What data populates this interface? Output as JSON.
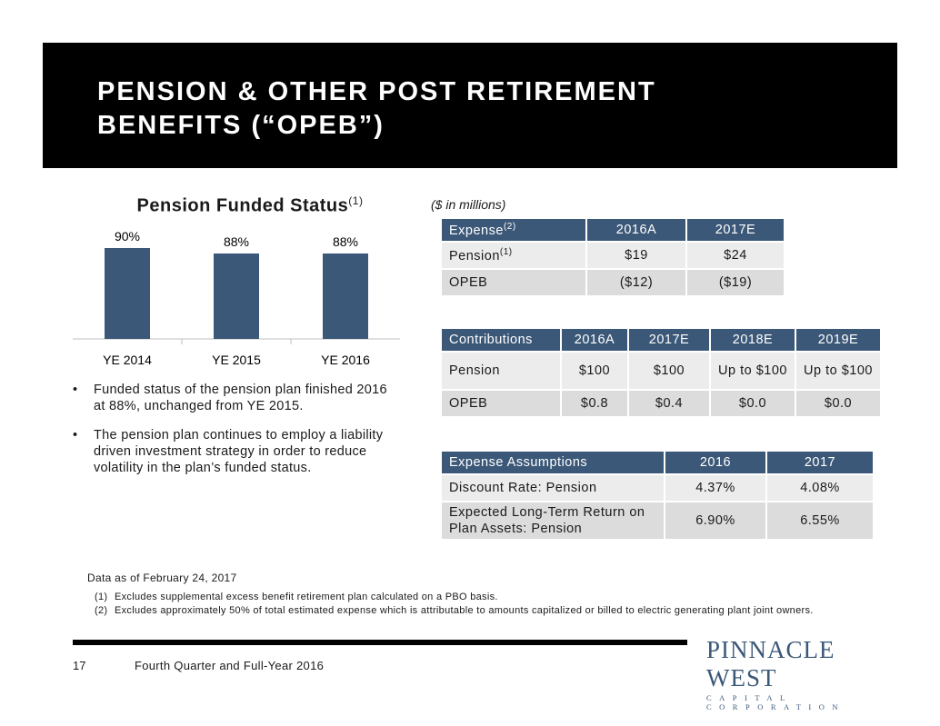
{
  "title": "PENSION & OTHER POST RETIREMENT\nBENEFITS (“OPEB”)",
  "chart_title": "Pension Funded Status",
  "chart_title_sup": "(1)",
  "chart_data": {
    "type": "bar",
    "title": "Pension Funded Status(1)",
    "categories": [
      "YE 2014",
      "YE 2015",
      "YE 2016"
    ],
    "values": [
      90,
      88,
      88
    ],
    "data_labels": [
      "90%",
      "88%",
      "88%"
    ],
    "color": "#3b5878",
    "xlabel": "",
    "ylabel": ""
  },
  "bullets": [
    "Funded status of the pension plan finished 2016 at 88%, unchanged from YE 2015.",
    "The pension plan continues to employ a liability driven investment strategy in order to reduce volatility in the plan’s funded status."
  ],
  "bullet_char": "•",
  "units_note": "($ in millions)",
  "expense_table": {
    "header": {
      "label": "Expense",
      "sup": "(2)",
      "cols": [
        "2016A",
        "2017E"
      ]
    },
    "rows": [
      {
        "label": "Pension",
        "sup": "(1)",
        "cells": [
          "$19",
          "$24"
        ]
      },
      {
        "label": "OPEB",
        "sup": "",
        "cells": [
          "($12)",
          "($19)"
        ]
      }
    ]
  },
  "contributions_table": {
    "header": [
      "Contributions",
      "2016A",
      "2017E",
      "2018E",
      "2019E"
    ],
    "rows": [
      [
        "Pension",
        "$100",
        "$100",
        "Up to $100",
        "Up to $100"
      ],
      [
        "OPEB",
        "$0.8",
        "$0.4",
        "$0.0",
        "$0.0"
      ]
    ]
  },
  "assumptions_table": {
    "header": [
      "Expense Assumptions",
      "2016",
      "2017"
    ],
    "rows": [
      [
        "Discount Rate: Pension",
        "4.37%",
        "4.08%"
      ],
      [
        "Expected Long-Term Return on Plan Assets: Pension",
        "6.90%",
        "6.55%"
      ]
    ]
  },
  "data_date": "Data as of February 24, 2017",
  "footnotes": [
    {
      "num": "(1)",
      "text": "Excludes supplemental excess benefit retirement plan calculated on a PBO basis."
    },
    {
      "num": "(2)",
      "text": "Excludes approximately 50% of total estimated expense which is attributable to amounts capitalized or billed to electric generating plant joint owners."
    }
  ],
  "page_number": "17",
  "footer_text": "Fourth Quarter and Full-Year 2016",
  "logo": {
    "main": "PINNACLE WEST",
    "sub": "CAPITAL CORPORATION"
  }
}
